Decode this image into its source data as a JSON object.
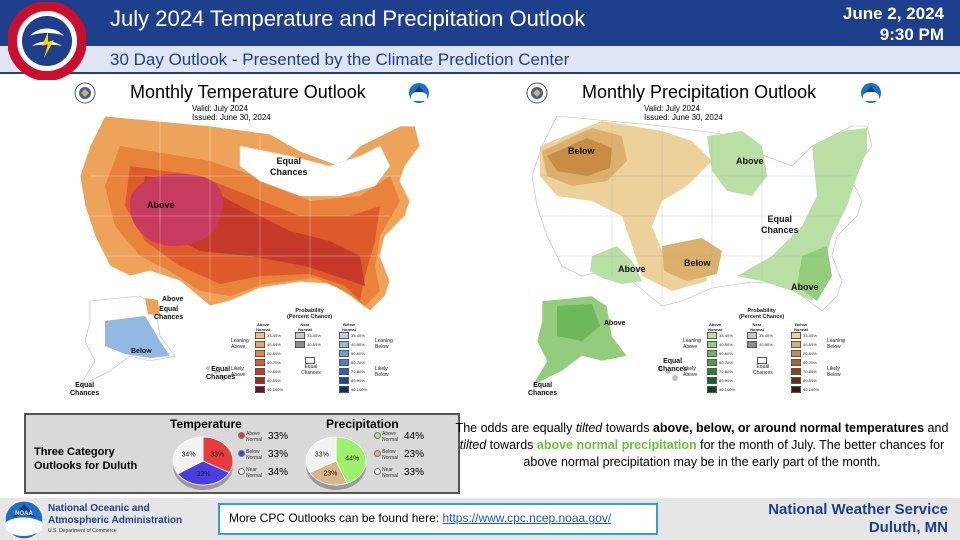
{
  "header": {
    "title": "July 2024 Temperature and Precipitation Outlook",
    "date": "June 2, 2024",
    "time": "9:30 PM",
    "subtitle": "30 Day Outlook - Presented by the Climate Prediction Center",
    "logo_icon": "nws-logo-icon"
  },
  "temperature_map": {
    "title": "Monthly Temperature Outlook",
    "valid": "Valid:  July 2024",
    "issued": "Issued:  June 30, 2024",
    "labels": {
      "above": "Above",
      "equal_chances_1": "Equal",
      "equal_chances_2": "Chances",
      "alaska_above": "Above",
      "alaska_equal_1": "Equal",
      "alaska_equal_2": "Chances",
      "alaska_below": "Below",
      "hawaii_equal_1": "Equal",
      "hawaii_equal_2": "Chances",
      "sw_equal_1": "Equal",
      "sw_equal_2": "Chances"
    },
    "legend": {
      "title_1": "Probability",
      "title_2": "(Percent Chance)",
      "col_above": "Above Normal",
      "col_near": "Near Normal",
      "col_below": "Below Normal",
      "leaning_above_1": "Leaning",
      "leaning_above_2": "Above",
      "likely_above_1": "Likely",
      "likely_above_2": "Above",
      "leaning_below_1": "Leaning",
      "leaning_below_2": "Below",
      "likely_below_1": "Likely",
      "likely_below_2": "Below",
      "equal_1": "Equal",
      "equal_2": "Chances",
      "ranges": [
        "33-40%",
        "40-50%",
        "50-60%",
        "60-70%",
        "70-80%",
        "80-90%",
        "90-100%"
      ],
      "near_ranges": [
        "33-40%",
        "40-50%"
      ]
    },
    "colors": {
      "above": [
        "#f1c27d",
        "#eda45a",
        "#e8823d",
        "#dd5a2a",
        "#c63a2a",
        "#a02326",
        "#6a1418"
      ],
      "below": [
        "#b9d1ec",
        "#93b9e3",
        "#6e9fd8",
        "#4a80c8",
        "#2f62ad",
        "#1d478c",
        "#0f2c5e"
      ],
      "near": [
        "#c8c8c8",
        "#8c8c8c"
      ]
    }
  },
  "precipitation_map": {
    "title": "Monthly Precipitation Outlook",
    "valid": "Valid:  July 2024",
    "issued": "Issued:  June 30, 2024",
    "labels": {
      "below_nw": "Below",
      "above_glakes": "Above",
      "equal_1": "Equal",
      "equal_2": "Chances",
      "above_sw": "Above",
      "below_south": "Below",
      "above_se": "Above",
      "alaska_above": "Above",
      "hawaii_equal_1": "Equal",
      "hawaii_equal_2": "Chances",
      "sw_equal_1": "Equal",
      "sw_equal_2": "Chances"
    },
    "legend": {
      "title_1": "Probability",
      "title_2": "(Percent Chance)",
      "col_above": "Above Normal",
      "col_near": "Near Normal",
      "col_below": "Below Normal",
      "leaning_above_1": "Leaning",
      "leaning_above_2": "Above",
      "likely_above_1": "Likely",
      "likely_above_2": "Above",
      "leaning_below_1": "Leaning",
      "leaning_below_2": "Below",
      "likely_below_1": "Likely",
      "likely_below_2": "Below",
      "equal_1": "Equal",
      "equal_2": "Chances",
      "ranges": [
        "33-40%",
        "40-50%",
        "50-60%",
        "60-70%",
        "70-80%",
        "80-90%",
        "90-100%"
      ],
      "near_ranges": [
        "33-40%",
        "40-50%"
      ]
    },
    "colors": {
      "above": [
        "#b9dfa5",
        "#93cc7c",
        "#6cb85a",
        "#4a9e45",
        "#2f7f37",
        "#1c6029",
        "#0e3f1a"
      ],
      "below": [
        "#ecd29a",
        "#dcb06a",
        "#c88c45",
        "#a9682e",
        "#87481c",
        "#63300f",
        "#3f1c07"
      ],
      "near": [
        "#c8c8c8",
        "#8c8c8c"
      ]
    }
  },
  "duluth_box": {
    "label_1": "Three Category",
    "label_2": "Outlooks for Duluth",
    "temperature": {
      "heading": "Temperature",
      "slices": [
        {
          "name": "Above Normal",
          "value": 33,
          "color": "#e83b3b"
        },
        {
          "name": "Below Normal",
          "value": 33,
          "color": "#4a3ee0"
        },
        {
          "name": "Near Normal",
          "value": 34,
          "color": "#f2f2f2"
        }
      ],
      "pie_labels": [
        "33%",
        "33%",
        "34%"
      ],
      "legend": [
        {
          "line1": "Above",
          "line2": "Normal",
          "pct": "33%"
        },
        {
          "line1": "Below",
          "line2": "Normal",
          "pct": "33%"
        },
        {
          "line1": "Near",
          "line2": "Normal",
          "pct": "34%"
        }
      ]
    },
    "precipitation": {
      "heading": "Precipitation",
      "slices": [
        {
          "name": "Above Normal",
          "value": 44,
          "color": "#9ef06a"
        },
        {
          "name": "Below Normal",
          "value": 23,
          "color": "#d8b48a"
        },
        {
          "name": "Near Normal",
          "value": 33,
          "color": "#f2f2f2"
        }
      ],
      "pie_labels": [
        "44%",
        "23%",
        "33%"
      ],
      "legend": [
        {
          "line1": "Above",
          "line2": "Normal",
          "pct": "44%"
        },
        {
          "line1": "Below",
          "line2": "Normal",
          "pct": "23%"
        },
        {
          "line1": "Near",
          "line2": "Normal",
          "pct": "33%"
        }
      ]
    }
  },
  "paragraph": {
    "p1": "The odds are equally ",
    "p2": "tilted",
    "p3": " towards ",
    "p4": "above, below, or around normal temperatures",
    "p5": " and ",
    "p6": "tilted",
    "p7": " towards ",
    "p8": "above normal precipitation",
    "p9": " for the month of July. The better chances for above normal precipitation may be in the early part of the month."
  },
  "footer": {
    "noaa_line1": "National Oceanic and",
    "noaa_line2": "Atmospheric Administration",
    "noaa_dept": "U.S. Department of Commerce",
    "cpc_text": "More CPC Outlooks can be found here: ",
    "cpc_link": "https://www.cpc.ncep.noaa.gov/",
    "nws_line1": "National  Weather  Service",
    "nws_line2": "Duluth,  MN"
  }
}
